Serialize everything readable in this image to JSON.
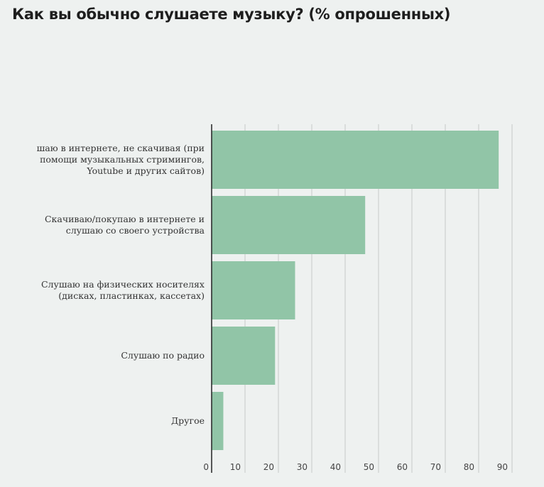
{
  "title": "Как вы обычно слушаете музыку? (% опрошенных)",
  "colors": {
    "bar": "#91c5a7",
    "grid": "#c6c9c8",
    "axis": "#222222",
    "background": "#eef1f0"
  },
  "chart_data": {
    "type": "bar",
    "orientation": "horizontal",
    "categories": [
      "шаю в интернете, не скачивая (при помощи музыкальных стримингов, Youtube и других сайтов)",
      "Скачиваю/покупаю в интернете и слушаю со своего устройства",
      "Слушаю на физических носителях (дисках, пластинках, кассетах)",
      "Слушаю по радио",
      "Другое"
    ],
    "values": [
      86,
      46,
      25,
      19,
      3.5
    ],
    "xlim": [
      0,
      90
    ],
    "xticks": [
      "0",
      "10",
      "20",
      "30",
      "40",
      "50",
      "60",
      "70",
      "80",
      "90"
    ],
    "grid": true,
    "legend": "none"
  }
}
